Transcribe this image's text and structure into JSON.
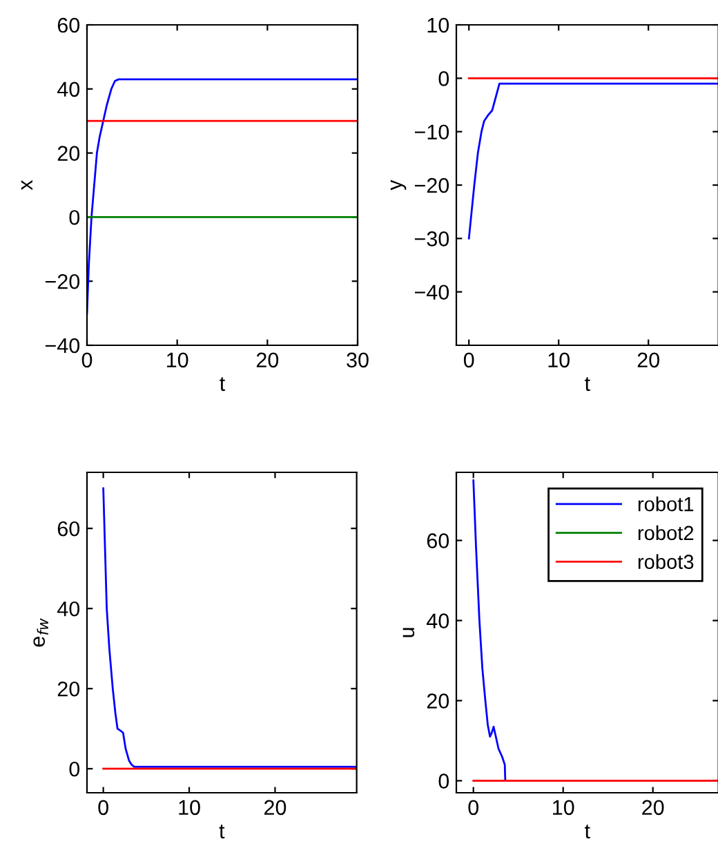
{
  "chart_data": [
    {
      "type": "line",
      "xlabel": "t",
      "ylabel": "x",
      "xlim": [
        0,
        30
      ],
      "ylim": [
        -40,
        60
      ],
      "xticks": [
        0,
        10,
        20,
        30
      ],
      "yticks": [
        -40,
        -20,
        0,
        20,
        40,
        60
      ],
      "grid": false,
      "legend": false,
      "series": [
        {
          "color": "#0000ff",
          "x": [
            0,
            0.2,
            0.5,
            0.8,
            1.1,
            1.4,
            1.8,
            2.2,
            2.7,
            3.1,
            3.5,
            30
          ],
          "values": [
            -30,
            -15,
            0,
            10,
            20,
            25,
            30,
            35,
            40,
            42.5,
            43,
            43
          ]
        },
        {
          "color": "#008000",
          "x": [
            0,
            30
          ],
          "values": [
            0,
            0
          ]
        },
        {
          "color": "#ff0000",
          "x": [
            0,
            30
          ],
          "values": [
            30,
            30
          ]
        }
      ]
    },
    {
      "type": "line",
      "xlabel": "t",
      "ylabel": "y",
      "xlim": [
        -1.4,
        27.8
      ],
      "ylim": [
        -50,
        10
      ],
      "xticks": [
        0,
        10,
        20
      ],
      "yticks": [
        -40,
        -30,
        -20,
        -10,
        0,
        10
      ],
      "grid": false,
      "legend": false,
      "series": [
        {
          "color": "#0000ff",
          "x": [
            0,
            0.3,
            0.6,
            1.0,
            1.4,
            1.7,
            2.1,
            2.6,
            3.0,
            3.4,
            27.8
          ],
          "values": [
            -30,
            -25,
            -20,
            -14,
            -10,
            -8,
            -7,
            -6,
            -3.5,
            -1,
            -1
          ]
        },
        {
          "color": "#ff0000",
          "x": [
            0,
            27.8
          ],
          "values": [
            0,
            0
          ]
        }
      ]
    },
    {
      "type": "line",
      "xlabel": "t",
      "ylabel": "e$_{fw}$",
      "xlim": [
        -1.9,
        29.5
      ],
      "ylim": [
        -6,
        74
      ],
      "xticks": [
        0,
        10,
        20
      ],
      "yticks": [
        0,
        20,
        40,
        60
      ],
      "grid": false,
      "legend": false,
      "series": [
        {
          "color": "#0000ff",
          "x": [
            0,
            0.2,
            0.4,
            0.7,
            1.1,
            1.4,
            1.65,
            2.0,
            2.3,
            2.6,
            3.0,
            3.3,
            3.6,
            29.5
          ],
          "values": [
            70,
            55,
            40,
            30,
            20,
            14,
            10,
            9.5,
            9,
            5,
            2,
            1,
            0.5,
            0.5
          ]
        },
        {
          "color": "#ff0000",
          "x": [
            0,
            29.5
          ],
          "values": [
            0,
            0
          ]
        }
      ]
    },
    {
      "type": "line",
      "xlabel": "t",
      "ylabel": "u",
      "xlim": [
        -1.9,
        27.3
      ],
      "ylim": [
        -3,
        77
      ],
      "xticks": [
        0,
        10,
        20
      ],
      "yticks": [
        0,
        20,
        40,
        60
      ],
      "grid": false,
      "legend": "top right",
      "series": [
        {
          "name": "robot1",
          "color": "#0000ff",
          "x": [
            0,
            0.3,
            0.67,
            1.0,
            1.33,
            1.6,
            1.85,
            2.05,
            2.25,
            2.5,
            2.8,
            3.2,
            3.5,
            3.55
          ],
          "values": [
            75,
            58,
            40,
            28,
            20,
            14,
            11,
            12,
            13.5,
            11,
            8,
            6,
            4,
            0
          ]
        },
        {
          "name": "robot2",
          "color": "#008000"
        },
        {
          "name": "robot3",
          "color": "#ff0000",
          "x": [
            0,
            27.3
          ],
          "values": [
            0,
            0
          ]
        }
      ]
    }
  ]
}
